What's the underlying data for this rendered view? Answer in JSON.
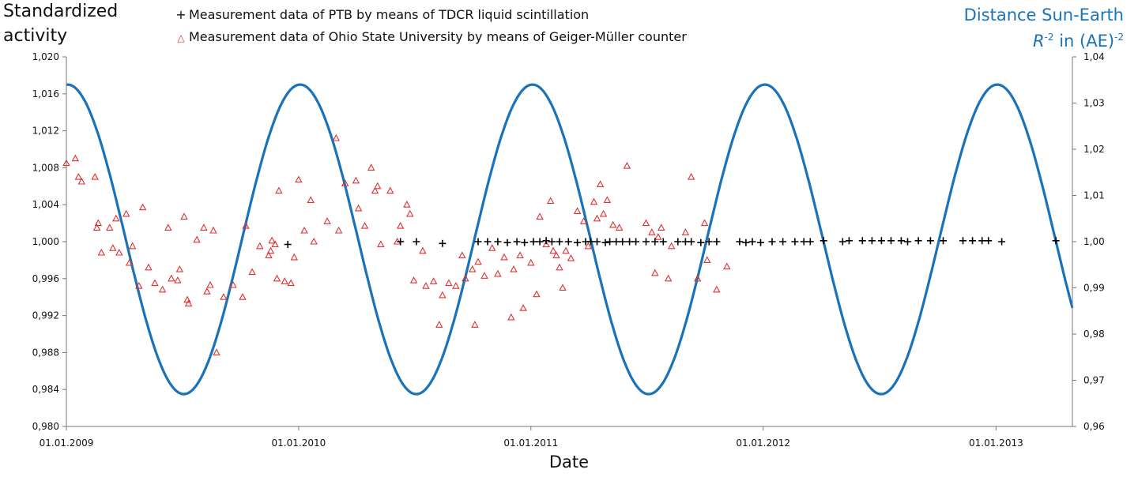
{
  "labels": {
    "y_left_line1": "Standardized",
    "y_left_line2": "activity",
    "y_right_line1": "Distance Sun-Earth",
    "y_right_r": "R",
    "y_right_exp1": "-2",
    "y_right_mid": " in (AE)",
    "y_right_exp2": "-2",
    "x_label": "Date"
  },
  "chart_data": {
    "type": "scatter",
    "title": "",
    "xlabel": "Date",
    "ylabel": "Standardized activity",
    "y2label": "Distance Sun-Earth R-2 in (AE)-2",
    "x_axis": {
      "type": "date",
      "min": "2009-01-01",
      "max": "2013-05-01",
      "ticks": [
        "01.01.2009",
        "01.01.2010",
        "01.01.2011",
        "01.01.2012",
        "01.01.2013"
      ]
    },
    "ylim": [
      0.98,
      1.02
    ],
    "y_ticks": [
      "0,980",
      "0,984",
      "0,988",
      "0,992",
      "0,996",
      "1,000",
      "1,004",
      "1,008",
      "1,012",
      "1,016",
      "1,020"
    ],
    "y2lim": [
      0.96,
      1.04
    ],
    "y2_ticks": [
      "0,96",
      "0,97",
      "0,98",
      "0,99",
      "1,00",
      "1,01",
      "1,02",
      "1,03",
      "1,04"
    ],
    "grid": false,
    "legend_position": "top",
    "series": [
      {
        "name": "Measurement data of PTB by means of TDCR liquid scintillation",
        "marker": "plus",
        "color": "#000000",
        "axis": "left",
        "points": [
          [
            "2009-12-15",
            0.9997
          ],
          [
            "2010-06-10",
            1.0
          ],
          [
            "2010-07-05",
            1.0
          ],
          [
            "2010-08-15",
            0.9998
          ],
          [
            "2010-10-10",
            1.0
          ],
          [
            "2010-10-25",
            1.0
          ],
          [
            "2010-11-10",
            1.0
          ],
          [
            "2010-11-25",
            0.9999
          ],
          [
            "2010-12-10",
            1.0
          ],
          [
            "2010-12-22",
            0.9999
          ],
          [
            "2011-01-05",
            1.0
          ],
          [
            "2011-01-15",
            1.0
          ],
          [
            "2011-01-25",
            1.0001
          ],
          [
            "2011-02-03",
            1.0
          ],
          [
            "2011-02-15",
            1.0
          ],
          [
            "2011-03-01",
            1.0
          ],
          [
            "2011-03-15",
            0.9999
          ],
          [
            "2011-03-28",
            1.0
          ],
          [
            "2011-04-05",
            1.0
          ],
          [
            "2011-04-15",
            1.0
          ],
          [
            "2011-04-28",
            0.9999
          ],
          [
            "2011-05-05",
            1.0
          ],
          [
            "2011-05-15",
            1.0
          ],
          [
            "2011-05-25",
            1.0
          ],
          [
            "2011-06-05",
            1.0
          ],
          [
            "2011-06-15",
            1.0
          ],
          [
            "2011-07-01",
            1.0
          ],
          [
            "2011-07-15",
            1.0
          ],
          [
            "2011-07-28",
            1.0
          ],
          [
            "2011-08-20",
            1.0
          ],
          [
            "2011-09-01",
            1.0
          ],
          [
            "2011-09-10",
            1.0
          ],
          [
            "2011-09-25",
            0.9999
          ],
          [
            "2011-10-08",
            1.0
          ],
          [
            "2011-10-20",
            1.0
          ],
          [
            "2011-11-25",
            1.0
          ],
          [
            "2011-12-05",
            0.9999
          ],
          [
            "2011-12-15",
            1.0
          ],
          [
            "2011-12-28",
            0.9999
          ],
          [
            "2012-01-15",
            1.0
          ],
          [
            "2012-02-01",
            1.0
          ],
          [
            "2012-02-20",
            1.0
          ],
          [
            "2012-03-05",
            1.0
          ],
          [
            "2012-03-15",
            1.0
          ],
          [
            "2012-04-05",
            1.0001
          ],
          [
            "2012-05-05",
            1.0
          ],
          [
            "2012-05-15",
            1.0001
          ],
          [
            "2012-06-05",
            1.0001
          ],
          [
            "2012-06-20",
            1.0001
          ],
          [
            "2012-07-05",
            1.0001
          ],
          [
            "2012-07-20",
            1.0001
          ],
          [
            "2012-08-05",
            1.0001
          ],
          [
            "2012-08-15",
            1.0
          ],
          [
            "2012-09-01",
            1.0001
          ],
          [
            "2012-09-20",
            1.0001
          ],
          [
            "2012-10-10",
            1.0001
          ],
          [
            "2012-11-10",
            1.0001
          ],
          [
            "2012-11-25",
            1.0001
          ],
          [
            "2012-12-10",
            1.0001
          ],
          [
            "2012-12-20",
            1.0001
          ],
          [
            "2013-01-10",
            1.0
          ],
          [
            "2013-04-05",
            1.0001
          ]
        ]
      },
      {
        "name": "Measurement data of Ohio State University by means of Geiger-Müller counter",
        "marker": "triangle",
        "color": "#e03030",
        "axis": "left",
        "points": [
          [
            "2009-01-01",
            1.0085
          ],
          [
            "2009-01-15",
            1.009
          ],
          [
            "2009-01-20",
            1.007
          ],
          [
            "2009-01-25",
            1.0065
          ],
          [
            "2009-02-15",
            1.007
          ],
          [
            "2009-02-18",
            1.0015
          ],
          [
            "2009-02-20",
            1.002
          ],
          [
            "2009-02-25",
            0.9988
          ],
          [
            "2009-03-10",
            1.0015
          ],
          [
            "2009-03-15",
            0.9993
          ],
          [
            "2009-03-20",
            1.0025
          ],
          [
            "2009-03-25",
            0.9988
          ],
          [
            "2009-04-05",
            1.003
          ],
          [
            "2009-04-10",
            0.9977
          ],
          [
            "2009-04-15",
            0.9995
          ],
          [
            "2009-04-25",
            0.9952
          ],
          [
            "2009-05-01",
            1.0037
          ],
          [
            "2009-05-10",
            0.9972
          ],
          [
            "2009-05-20",
            0.9955
          ],
          [
            "2009-06-01",
            0.9948
          ],
          [
            "2009-06-10",
            1.0015
          ],
          [
            "2009-06-15",
            0.996
          ],
          [
            "2009-06-25",
            0.9958
          ],
          [
            "2009-06-28",
            0.997
          ],
          [
            "2009-07-05",
            1.0027
          ],
          [
            "2009-07-10",
            0.9937
          ],
          [
            "2009-07-12",
            0.9933
          ],
          [
            "2009-07-25",
            1.0002
          ],
          [
            "2009-08-05",
            1.0015
          ],
          [
            "2009-08-10",
            0.9946
          ],
          [
            "2009-08-15",
            0.9953
          ],
          [
            "2009-08-20",
            1.0012
          ],
          [
            "2009-08-25",
            0.988
          ],
          [
            "2009-09-05",
            0.994
          ],
          [
            "2009-09-20",
            0.9953
          ],
          [
            "2009-10-05",
            0.994
          ],
          [
            "2009-10-10",
            1.0017
          ],
          [
            "2009-10-20",
            0.9967
          ],
          [
            "2009-11-01",
            0.9995
          ],
          [
            "2009-11-15",
            0.9985
          ],
          [
            "2009-11-18",
            0.999
          ],
          [
            "2009-11-20",
            1.0001
          ],
          [
            "2009-11-25",
            0.9997
          ],
          [
            "2009-11-28",
            0.996
          ],
          [
            "2009-12-01",
            1.0055
          ],
          [
            "2009-12-10",
            0.9957
          ],
          [
            "2009-12-20",
            0.9955
          ],
          [
            "2009-12-25",
            0.9983
          ],
          [
            "2010-01-01",
            1.0067
          ],
          [
            "2010-01-10",
            1.0012
          ],
          [
            "2010-01-20",
            1.0045
          ],
          [
            "2010-01-25",
            1.0
          ],
          [
            "2010-02-15",
            1.0022
          ],
          [
            "2010-03-01",
            1.0112
          ],
          [
            "2010-03-05",
            1.0012
          ],
          [
            "2010-03-15",
            1.0063
          ],
          [
            "2010-04-01",
            1.0066
          ],
          [
            "2010-04-05",
            1.0036
          ],
          [
            "2010-04-15",
            1.0017
          ],
          [
            "2010-04-25",
            1.008
          ],
          [
            "2010-05-01",
            1.0055
          ],
          [
            "2010-05-05",
            1.006
          ],
          [
            "2010-05-10",
            0.9997
          ],
          [
            "2010-05-25",
            1.0055
          ],
          [
            "2010-06-05",
            1.0
          ],
          [
            "2010-06-10",
            1.0017
          ],
          [
            "2010-06-20",
            1.004
          ],
          [
            "2010-06-25",
            1.003
          ],
          [
            "2010-07-01",
            0.9958
          ],
          [
            "2010-07-15",
            0.999
          ],
          [
            "2010-07-20",
            0.9952
          ],
          [
            "2010-08-01",
            0.9957
          ],
          [
            "2010-08-10",
            0.991
          ],
          [
            "2010-08-15",
            0.9942
          ],
          [
            "2010-08-25",
            0.9955
          ],
          [
            "2010-09-05",
            0.9952
          ],
          [
            "2010-09-15",
            0.9985
          ],
          [
            "2010-09-20",
            0.996
          ],
          [
            "2010-10-01",
            0.997
          ],
          [
            "2010-10-05",
            0.991
          ],
          [
            "2010-10-10",
            0.9978
          ],
          [
            "2010-10-20",
            0.9963
          ],
          [
            "2010-11-01",
            0.9993
          ],
          [
            "2010-11-10",
            0.9965
          ],
          [
            "2010-11-20",
            0.9983
          ],
          [
            "2010-12-01",
            0.9918
          ],
          [
            "2010-12-05",
            0.997
          ],
          [
            "2010-12-15",
            0.9985
          ],
          [
            "2010-12-20",
            0.9928
          ],
          [
            "2011-01-01",
            0.9977
          ],
          [
            "2011-01-10",
            0.9943
          ],
          [
            "2011-01-15",
            1.0027
          ],
          [
            "2011-01-25",
            0.9997
          ],
          [
            "2011-02-01",
            1.0044
          ],
          [
            "2011-02-05",
            0.999
          ],
          [
            "2011-02-10",
            0.9985
          ],
          [
            "2011-02-15",
            0.9972
          ],
          [
            "2011-02-20",
            0.995
          ],
          [
            "2011-02-25",
            0.999
          ],
          [
            "2011-03-05",
            0.9982
          ],
          [
            "2011-03-15",
            1.0033
          ],
          [
            "2011-03-25",
            1.0022
          ],
          [
            "2011-04-01",
            0.9995
          ],
          [
            "2011-04-10",
            1.0043
          ],
          [
            "2011-04-15",
            1.0025
          ],
          [
            "2011-04-20",
            1.0062
          ],
          [
            "2011-04-25",
            1.003
          ],
          [
            "2011-05-01",
            1.0045
          ],
          [
            "2011-05-10",
            1.0018
          ],
          [
            "2011-05-20",
            1.0015
          ],
          [
            "2011-06-01",
            1.0082
          ],
          [
            "2011-07-01",
            1.002
          ],
          [
            "2011-07-10",
            1.001
          ],
          [
            "2011-07-15",
            0.9966
          ],
          [
            "2011-07-20",
            1.0005
          ],
          [
            "2011-07-25",
            1.0015
          ],
          [
            "2011-08-05",
            0.996
          ],
          [
            "2011-08-10",
            0.9995
          ],
          [
            "2011-09-01",
            1.001
          ],
          [
            "2011-09-10",
            1.007
          ],
          [
            "2011-09-20",
            0.996
          ],
          [
            "2011-10-01",
            1.002
          ],
          [
            "2011-10-05",
            0.998
          ],
          [
            "2011-10-20",
            0.9948
          ],
          [
            "2011-11-05",
            0.9973
          ]
        ]
      },
      {
        "name": "Distance Sun-Earth",
        "marker": "line",
        "color": "#1a73b8",
        "axis": "right",
        "function": "sinusoid",
        "mean": 1.0005,
        "amplitude": 0.0335,
        "maximum_date": "2009-01-03",
        "period_days": 365.25
      }
    ]
  },
  "colors": {
    "axis": "#777777",
    "curve": "#1a73b8",
    "ptb": "#000000",
    "ohio": "#e03030"
  }
}
